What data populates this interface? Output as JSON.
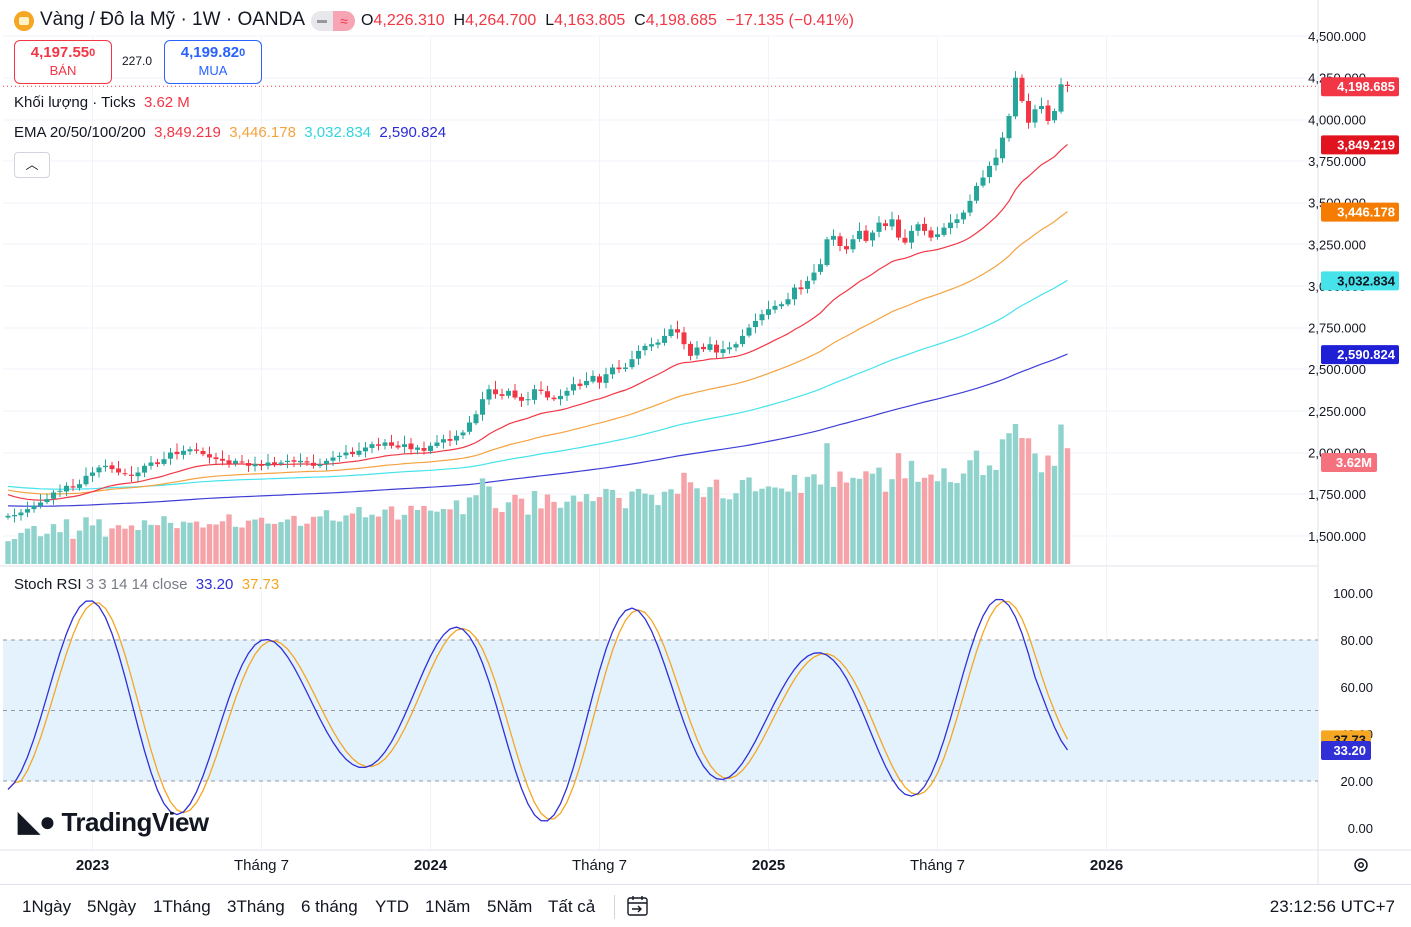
{
  "header": {
    "title": "Vàng / Đô la Mỹ · 1W · OANDA",
    "ohlc": [
      {
        "label": "O",
        "value": "4,226.310"
      },
      {
        "label": "H",
        "value": "4,264.700"
      },
      {
        "label": "L",
        "value": "4,163.805"
      },
      {
        "label": "C",
        "value": "4,198.685"
      }
    ],
    "change": "−17.135 (−0.41%)"
  },
  "trade": {
    "sell_price": "4,197.55",
    "sell_price_small": "0",
    "sell_label": "BÁN",
    "spread": "227.0",
    "buy_price": "4,199.82",
    "buy_price_small": "0",
    "buy_label": "MUA"
  },
  "indicators": {
    "volume_label": "Khối lượng · Ticks",
    "volume_value": "3.62 M",
    "ema_label": "EMA 20/50/100/200",
    "ema_values": [
      "3,849.219",
      "3,446.178",
      "3,032.834",
      "2,590.824"
    ],
    "stoch_label": "Stoch RSI",
    "stoch_params": "3 3 14 14 close",
    "stoch_k": "33.20",
    "stoch_d": "37.73"
  },
  "colors": {
    "up": "#26a69a",
    "down": "#f23645",
    "vol_up": "#8fd3cc",
    "vol_down": "#f5a3a8",
    "ema20": "#f23645",
    "ema50": "#f5a340",
    "ema100": "#46e3eb",
    "ema200": "#3f3fd6",
    "stoch_k": "#3030d6",
    "stoch_d": "#f5a623",
    "stoch_band": "#e3f2fd"
  },
  "watermark": "TradingView",
  "price_axis": {
    "ticks": [
      "4,500.000",
      "4,250.000",
      "4,000.000",
      "3,750.000",
      "3,500.000",
      "3,250.000",
      "3,000.000",
      "2,750.000",
      "2,500.000",
      "2,250.000",
      "2,000.000",
      "1,750.000",
      "1,500.000"
    ],
    "tick_values": [
      4500,
      4250,
      4000,
      3750,
      3500,
      3250,
      3000,
      2750,
      2500,
      2250,
      2000,
      1750,
      1500
    ],
    "badges": [
      {
        "text": "4,198.685",
        "value": 4198.685,
        "color": "#f23645"
      },
      {
        "text": "3,849.219",
        "value": 3849.219,
        "color": "#e0131f"
      },
      {
        "text": "3,446.178",
        "value": 3446.178,
        "color": "#f57c00"
      },
      {
        "text": "3,032.834",
        "value": 3032.834,
        "color": "#46e3eb"
      },
      {
        "text": "2,590.824",
        "value": 2590.824,
        "color": "#1f1fd6"
      }
    ],
    "volume_badge": "3.62 M"
  },
  "stoch_axis": {
    "ticks": [
      "100.00",
      "80.00",
      "60.00",
      "40.00",
      "20.00",
      "0.00"
    ],
    "tick_values": [
      100,
      80,
      60,
      40,
      20,
      0
    ]
  },
  "time_axis": [
    {
      "label": "2023",
      "bold": true,
      "week": 13
    },
    {
      "label": "Tháng 7",
      "bold": false,
      "week": 39
    },
    {
      "label": "2024",
      "bold": true,
      "week": 65
    },
    {
      "label": "Tháng 7",
      "bold": false,
      "week": 91
    },
    {
      "label": "2025",
      "bold": true,
      "week": 117
    },
    {
      "label": "Tháng 7",
      "bold": false,
      "week": 143
    },
    {
      "label": "2026",
      "bold": true,
      "week": 169
    }
  ],
  "ranges": [
    "1Ngày",
    "5Ngày",
    "1Tháng",
    "3Tháng",
    "6 tháng",
    "YTD",
    "1Năm",
    "5Năm",
    "Tất cả"
  ],
  "clock": "23:12:56 UTC+7",
  "chart_data": {
    "type": "candlestick",
    "interval": "1W",
    "symbol": "XAUUSD",
    "close": [
      1620,
      1625,
      1640,
      1660,
      1680,
      1700,
      1720,
      1760,
      1770,
      1800,
      1790,
      1810,
      1860,
      1880,
      1910,
      1920,
      1900,
      1880,
      1870,
      1860,
      1880,
      1920,
      1940,
      1930,
      1960,
      2000,
      1990,
      2010,
      2020,
      2010,
      1990,
      1970,
      1960,
      1950,
      1930,
      1950,
      1940,
      1920,
      1930,
      1920,
      1940,
      1930,
      1940,
      1950,
      1945,
      1950,
      1940,
      1920,
      1930,
      1950,
      1970,
      1980,
      2000,
      1990,
      2010,
      2030,
      2050,
      2040,
      2060,
      2040,
      2030,
      2050,
      2020,
      2030,
      2010,
      2040,
      2060,
      2080,
      2070,
      2100,
      2120,
      2180,
      2230,
      2320,
      2380,
      2350,
      2340,
      2370,
      2330,
      2310,
      2320,
      2380,
      2370,
      2330,
      2320,
      2340,
      2370,
      2410,
      2400,
      2430,
      2460,
      2420,
      2470,
      2510,
      2500,
      2510,
      2560,
      2610,
      2640,
      2650,
      2660,
      2700,
      2740,
      2720,
      2650,
      2580,
      2630,
      2620,
      2650,
      2600,
      2620,
      2630,
      2650,
      2700,
      2750,
      2790,
      2830,
      2860,
      2880,
      2890,
      2920,
      2990,
      2980,
      3030,
      3080,
      3130,
      3280,
      3300,
      3240,
      3220,
      3280,
      3330,
      3270,
      3320,
      3380,
      3360,
      3400,
      3290,
      3260,
      3330,
      3370,
      3330,
      3290,
      3310,
      3350,
      3380,
      3400,
      3440,
      3510,
      3600,
      3650,
      3720,
      3770,
      3890,
      4020,
      4250,
      4110,
      3980,
      4060,
      4080,
      3990,
      4050,
      4210,
      4200
    ],
    "ema": {
      "ema20": 3849.219,
      "ema50": 3446.178,
      "ema100": 3032.834,
      "ema200": 2590.824
    },
    "volume_last": 3.62,
    "volume_unit": "M",
    "stoch_rsi": {
      "k_last": 33.2,
      "d_last": 37.73
    },
    "ylim_price": [
      1450,
      4550
    ],
    "ylim_stoch": [
      0,
      100
    ]
  }
}
